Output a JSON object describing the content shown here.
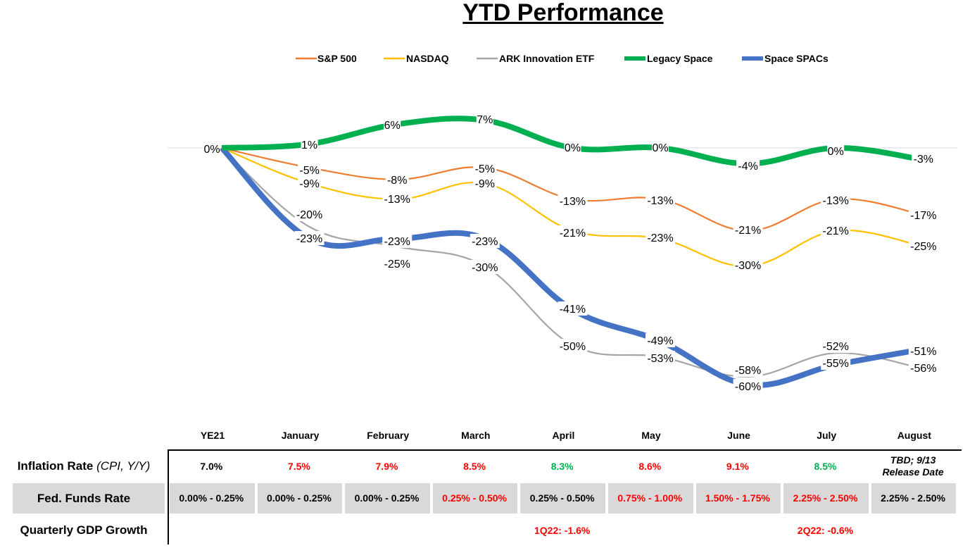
{
  "chart_data": {
    "type": "line",
    "title": "YTD Performance",
    "categories": [
      "YE21",
      "January",
      "February",
      "March",
      "April",
      "May",
      "June",
      "July",
      "August"
    ],
    "legend_position": "top",
    "grid": false,
    "series": [
      {
        "name": "S&P 500",
        "color": "#ed7d31",
        "values": [
          0,
          -5,
          -8,
          -5,
          -13,
          -13,
          -21,
          -13,
          -17
        ],
        "labels": [
          "",
          "-5%",
          "-8%",
          "-5%",
          "-13%",
          "-13%",
          "-21%",
          "-13%",
          "-17%"
        ]
      },
      {
        "name": "NASDAQ",
        "color": "#ffc000",
        "values": [
          0,
          -9,
          -13,
          -9,
          -21,
          -23,
          -30,
          -21,
          -25
        ],
        "labels": [
          "",
          "-9%",
          "-13%",
          "-9%",
          "-21%",
          "-23%",
          "-30%",
          "-21%",
          "-25%"
        ]
      },
      {
        "name": "ARK Innovation ETF",
        "color": "#a5a5a5",
        "values": [
          0,
          -20,
          -25,
          -30,
          -50,
          -53,
          -58,
          -52,
          -56
        ],
        "labels": [
          "",
          "-20%",
          "-25%",
          "-30%",
          "-50%",
          "-53%",
          "-58%",
          "-52%",
          "-56%"
        ]
      },
      {
        "name": "Legacy Space",
        "color": "#00b050",
        "values": [
          0,
          1,
          6,
          7,
          0,
          0,
          -4,
          0,
          -3
        ],
        "labels": [
          "0%",
          "1%",
          "6%",
          "7%",
          "0%",
          "0%",
          "-4%",
          "0%",
          "-3%"
        ]
      },
      {
        "name": "Space SPACs",
        "color": "#4472c4",
        "values": [
          0,
          -23,
          -23,
          -23,
          -41,
          -49,
          -60,
          -55,
          -51
        ],
        "labels": [
          "",
          "-23%",
          "-23%",
          "-23%",
          "-41%",
          "-49%",
          "-60%",
          "-55%",
          "-51%"
        ]
      }
    ]
  },
  "macro_table": {
    "rows": [
      {
        "label": "Inflation Rate",
        "label_suffix": "(CPI, Y/Y)",
        "cells": [
          {
            "text": "7.0%",
            "color": "#000000"
          },
          {
            "text": "7.5%",
            "color": "#ff0000"
          },
          {
            "text": "7.9%",
            "color": "#ff0000"
          },
          {
            "text": "8.5%",
            "color": "#ff0000"
          },
          {
            "text": "8.3%",
            "color": "#00b050"
          },
          {
            "text": "8.6%",
            "color": "#ff0000"
          },
          {
            "text": "9.1%",
            "color": "#ff0000"
          },
          {
            "text": "8.5%",
            "color": "#00b050"
          },
          {
            "text": "TBD; 9/13 Release Date",
            "color": "#000000"
          }
        ]
      },
      {
        "label": "Fed. Funds Rate",
        "label_suffix": "",
        "cells": [
          {
            "text": "0.00% - 0.25%",
            "color": "#000000"
          },
          {
            "text": "0.00% - 0.25%",
            "color": "#000000"
          },
          {
            "text": "0.00% - 0.25%",
            "color": "#000000"
          },
          {
            "text": "0.25% - 0.50%",
            "color": "#ff0000"
          },
          {
            "text": "0.25% - 0.50%",
            "color": "#000000"
          },
          {
            "text": "0.75% - 1.00%",
            "color": "#ff0000"
          },
          {
            "text": "1.50% - 1.75%",
            "color": "#ff0000"
          },
          {
            "text": "2.25% - 2.50%",
            "color": "#ff0000"
          },
          {
            "text": "2.25% - 2.50%",
            "color": "#000000"
          }
        ]
      },
      {
        "label": "Quarterly GDP Growth",
        "label_suffix": "",
        "cells": [
          {
            "text": "",
            "color": "#000000"
          },
          {
            "text": "",
            "color": "#000000"
          },
          {
            "text": "",
            "color": "#000000"
          },
          {
            "text": "",
            "color": "#000000"
          },
          {
            "text": "1Q22: -1.6%",
            "color": "#ff0000"
          },
          {
            "text": "",
            "color": "#000000"
          },
          {
            "text": "",
            "color": "#000000"
          },
          {
            "text": "2Q22: -0.6%",
            "color": "#ff0000"
          },
          {
            "text": "",
            "color": "#000000"
          }
        ]
      }
    ]
  }
}
